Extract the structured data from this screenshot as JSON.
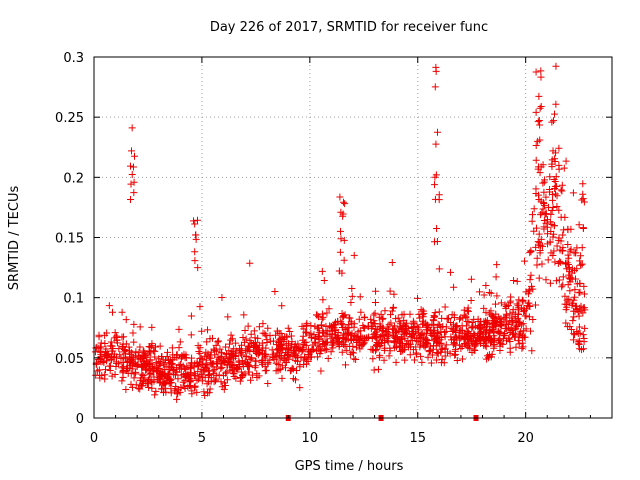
{
  "chart_data": {
    "type": "scatter",
    "title": "Day 226 of 2017, SRMTID for receiver func",
    "xlabel": "GPS time / hours",
    "ylabel": "SRMTID / TECUs",
    "xlim": [
      0,
      24
    ],
    "ylim": [
      0,
      0.3
    ],
    "x_ticks": [
      {
        "value": 0,
        "label": "0"
      },
      {
        "value": 5,
        "label": "5"
      },
      {
        "value": 10,
        "label": "10"
      },
      {
        "value": 15,
        "label": "15"
      },
      {
        "value": 20,
        "label": "20"
      }
    ],
    "y_ticks": [
      {
        "value": 0,
        "label": "0"
      },
      {
        "value": 0.05,
        "label": "0.05"
      },
      {
        "value": 0.1,
        "label": "0.1"
      },
      {
        "value": 0.15,
        "label": "0.15"
      },
      {
        "value": 0.2,
        "label": "0.2"
      },
      {
        "value": 0.25,
        "label": "0.25"
      },
      {
        "value": 0.3,
        "label": "0.3"
      }
    ],
    "grid": true,
    "marker": "+",
    "series_color": "#ee0000",
    "gap_markers_x": [
      9.0,
      13.3,
      17.7
    ],
    "baseline_profile": [
      [
        0,
        0.048
      ],
      [
        1,
        0.052
      ],
      [
        2,
        0.045
      ],
      [
        3,
        0.038
      ],
      [
        4,
        0.036
      ],
      [
        5,
        0.04
      ],
      [
        6,
        0.045
      ],
      [
        7,
        0.05
      ],
      [
        8,
        0.056
      ],
      [
        9,
        0.055
      ],
      [
        10,
        0.06
      ],
      [
        11,
        0.07
      ],
      [
        12,
        0.068
      ],
      [
        13,
        0.065
      ],
      [
        14,
        0.068
      ],
      [
        15,
        0.07
      ],
      [
        16,
        0.066
      ],
      [
        17,
        0.07
      ],
      [
        18,
        0.07
      ],
      [
        19,
        0.075
      ],
      [
        20,
        0.08
      ],
      [
        20.5,
        0.15
      ],
      [
        21,
        0.17
      ],
      [
        21.5,
        0.16
      ],
      [
        22,
        0.12
      ],
      [
        22.6,
        0.1
      ]
    ],
    "bursts": [
      {
        "x": 1.8,
        "y_range": [
          0.18,
          0.243
        ],
        "n": 10
      },
      {
        "x": 4.7,
        "y_range": [
          0.12,
          0.167
        ],
        "n": 9
      },
      {
        "x": 11.5,
        "y_range": [
          0.12,
          0.193
        ],
        "n": 12
      },
      {
        "x": 15.9,
        "y_range": [
          0.14,
          0.3
        ],
        "n": 14
      },
      {
        "x": 20.6,
        "y_range": [
          0.2,
          0.295
        ],
        "n": 18
      },
      {
        "x": 21.3,
        "y_range": [
          0.18,
          0.293
        ],
        "n": 16
      },
      {
        "x": 22.6,
        "y_range": [
          0.1,
          0.2
        ],
        "n": 10
      }
    ]
  }
}
